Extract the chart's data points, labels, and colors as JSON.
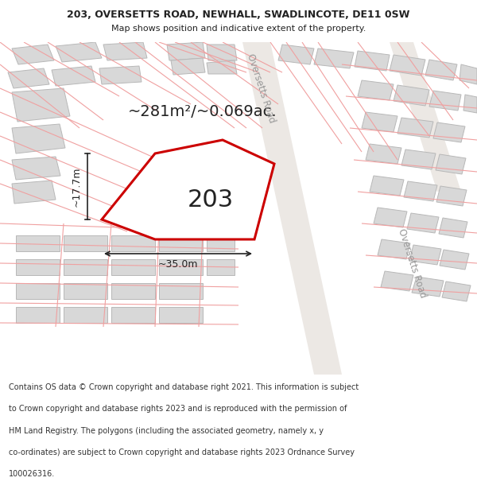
{
  "title_line1": "203, OVERSETTS ROAD, NEWHALL, SWADLINCOTE, DE11 0SW",
  "title_line2": "Map shows position and indicative extent of the property.",
  "footer_lines": [
    "Contains OS data © Crown copyright and database right 2021. This information is subject",
    "to Crown copyright and database rights 2023 and is reproduced with the permission of",
    "HM Land Registry. The polygons (including the associated geometry, namely x, y",
    "co-ordinates) are subject to Crown copyright and database rights 2023 Ordnance Survey",
    "100026316."
  ],
  "map_bg": "#ffffff",
  "road_band_color": "#e8e4e0",
  "road_line_color": "#f0a0a0",
  "building_fill": "#d8d8d8",
  "building_edge": "#b8b8b8",
  "plot_fill": "#ffffff",
  "plot_edge": "#cc0000",
  "plot_lw": 2.2,
  "text_dark": "#222222",
  "text_gray": "#999999",
  "area_text": "~281m²/~0.069ac.",
  "plot_label": "203",
  "dim_w": "~35.0m",
  "dim_h": "~17.7m",
  "road_name": "Oversetts Road",
  "white": "#ffffff",
  "footer_fs": 7.0,
  "title_fs1": 9.0,
  "title_fs2": 8.0
}
